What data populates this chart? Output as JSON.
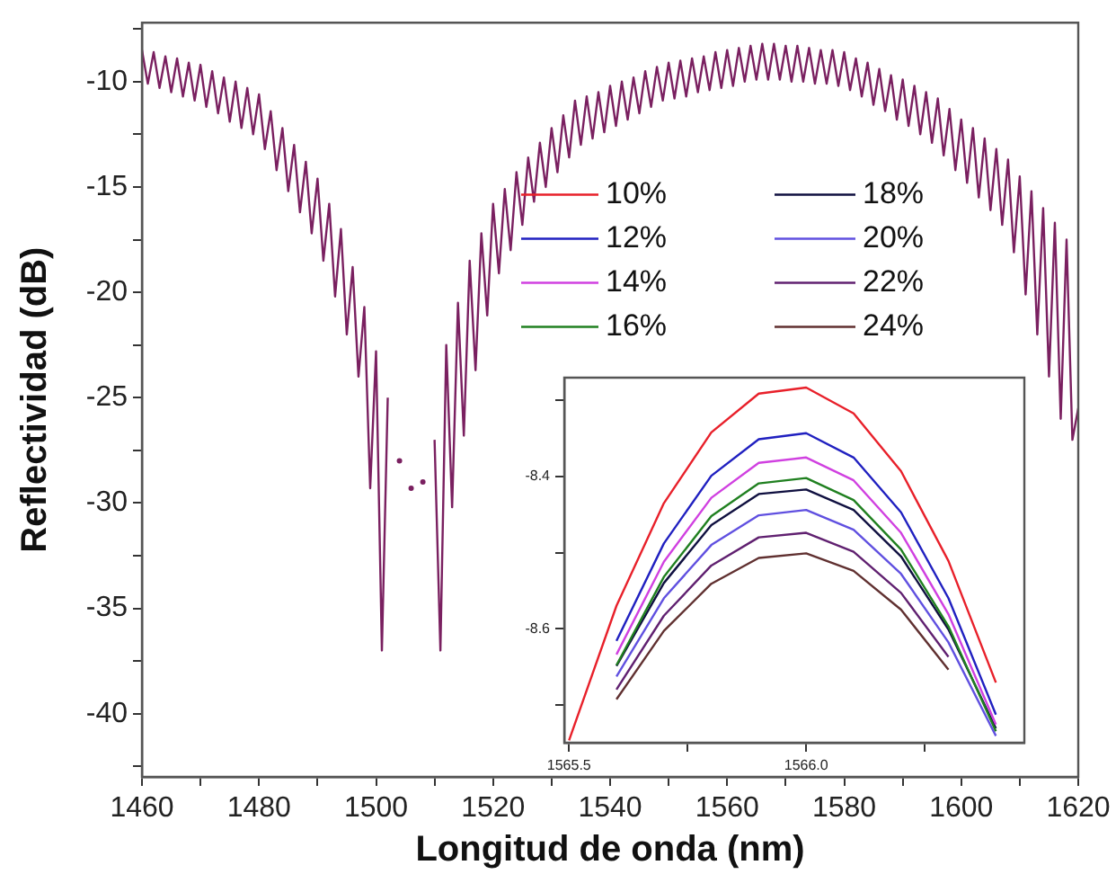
{
  "chart_data": [
    {
      "type": "line",
      "xlabel": "Longitud de onda (nm)",
      "ylabel": "Reflectividad (dB)",
      "marker": "none",
      "grid": false,
      "xlim": [
        1460,
        1620
      ],
      "ylim": [
        -43,
        -7.2
      ],
      "xticks": [
        1460,
        {
          "value": 1470,
          "label": null
        },
        1480,
        {
          "value": 1490,
          "label": null
        },
        1500,
        {
          "value": 1510,
          "label": null
        },
        1520,
        {
          "value": 1530,
          "label": null
        },
        1540,
        {
          "value": 1550,
          "label": null
        },
        1560,
        {
          "value": 1570,
          "label": null
        },
        1580,
        {
          "value": 1590,
          "label": null
        },
        1600,
        {
          "value": 1610,
          "label": null
        },
        1620
      ],
      "yticks": [
        {
          "value": -7.5,
          "label": null
        },
        -10,
        {
          "value": -12.5,
          "label": null
        },
        -15,
        {
          "value": -17.5,
          "label": null
        },
        -20,
        {
          "value": -22.5,
          "label": null
        },
        -25,
        {
          "value": -27.5,
          "label": null
        },
        -30,
        {
          "value": -32.5,
          "label": null
        },
        -35,
        {
          "value": -37.5,
          "label": null
        },
        -40,
        {
          "value": -42.5,
          "label": null
        }
      ],
      "x": [
        1460,
        1461,
        1462,
        1463,
        1464,
        1465,
        1466,
        1467,
        1468,
        1469,
        1470,
        1471,
        1472,
        1473,
        1474,
        1475,
        1476,
        1477,
        1478,
        1479,
        1480,
        1481,
        1482,
        1483,
        1484,
        1485,
        1486,
        1487,
        1488,
        1489,
        1490,
        1491,
        1492,
        1493,
        1494,
        1495,
        1496,
        1497,
        1498,
        1499,
        1500,
        1501,
        1502,
        1503,
        1504,
        1505,
        1506,
        1507,
        1508,
        1509,
        1510,
        1511,
        1512,
        1513,
        1514,
        1515,
        1516,
        1517,
        1518,
        1519,
        1520,
        1521,
        1522,
        1523,
        1524,
        1525,
        1526,
        1527,
        1528,
        1529,
        1530,
        1531,
        1532,
        1533,
        1534,
        1535,
        1536,
        1537,
        1538,
        1539,
        1540,
        1541,
        1542,
        1543,
        1544,
        1545,
        1546,
        1547,
        1548,
        1549,
        1550,
        1551,
        1552,
        1553,
        1554,
        1555,
        1556,
        1557,
        1558,
        1559,
        1560,
        1561,
        1562,
        1563,
        1564,
        1565,
        1566,
        1567,
        1568,
        1569,
        1570,
        1571,
        1572,
        1573,
        1574,
        1575,
        1576,
        1577,
        1578,
        1579,
        1580,
        1581,
        1582,
        1583,
        1584,
        1585,
        1586,
        1587,
        1588,
        1589,
        1590,
        1591,
        1592,
        1593,
        1594,
        1595,
        1596,
        1597,
        1598,
        1599,
        1600,
        1601,
        1602,
        1603,
        1604,
        1605,
        1606,
        1607,
        1608,
        1609,
        1610,
        1611,
        1612,
        1613,
        1614,
        1615,
        1616,
        1617,
        1618,
        1619,
        1620
      ],
      "series": [
        {
          "color": "#7a2060",
          "values": [
            -8.5,
            -10.1,
            -8.6,
            -10.3,
            -8.8,
            -10.5,
            -8.9,
            -10.7,
            -9.1,
            -10.9,
            -9.2,
            -11.2,
            -9.5,
            -11.5,
            -9.8,
            -11.9,
            -10.0,
            -12.2,
            -10.3,
            -12.5,
            -10.6,
            -13.2,
            -11.4,
            -14.2,
            -12.2,
            -15.2,
            -13.0,
            -16.2,
            -13.8,
            -17.2,
            -14.6,
            -18.5,
            -15.8,
            -20.2,
            -17.0,
            -22.0,
            -18.8,
            -24.0,
            -20.7,
            -29.3,
            -22.8,
            -37.0,
            -25.0,
            null,
            -28.0,
            null,
            -29.3,
            null,
            -29.0,
            null,
            -27.0,
            -37.0,
            -22.5,
            -30.2,
            -20.5,
            -26.8,
            -18.5,
            -23.7,
            -17.2,
            -21.1,
            -15.8,
            -19.1,
            -15.1,
            -18.0,
            -14.3,
            -16.8,
            -13.6,
            -15.7,
            -12.9,
            -15.0,
            -12.2,
            -14.3,
            -11.6,
            -13.6,
            -10.9,
            -13.0,
            -10.7,
            -12.7,
            -10.5,
            -12.4,
            -10.2,
            -12.1,
            -10.0,
            -11.8,
            -9.8,
            -11.5,
            -9.5,
            -11.2,
            -9.3,
            -10.9,
            -9.1,
            -10.8,
            -9.0,
            -10.7,
            -8.9,
            -10.5,
            -8.8,
            -10.4,
            -8.6,
            -10.3,
            -8.5,
            -10.2,
            -8.4,
            -10.0,
            -8.3,
            -9.9,
            -8.2,
            -9.9,
            -8.2,
            -9.9,
            -8.3,
            -10.0,
            -8.3,
            -10.0,
            -8.4,
            -10.1,
            -8.5,
            -10.1,
            -8.5,
            -10.2,
            -8.6,
            -10.4,
            -8.9,
            -10.7,
            -9.1,
            -11.1,
            -9.4,
            -11.4,
            -9.7,
            -11.8,
            -9.9,
            -12.1,
            -10.2,
            -12.5,
            -10.5,
            -12.9,
            -10.8,
            -13.5,
            -11.3,
            -14.2,
            -11.8,
            -14.8,
            -12.2,
            -15.5,
            -12.7,
            -16.1,
            -13.2,
            -16.8,
            -13.7,
            -18.1,
            -14.5,
            -20.1,
            -15.2,
            -22.0,
            -16.0,
            -24.0,
            -16.7,
            -26.0,
            -17.5,
            -27.0,
            -25.5
          ]
        }
      ]
    },
    {
      "type": "line",
      "marker": "none",
      "grid": false,
      "legend": "top",
      "xlim": [
        1565.49,
        1566.46
      ],
      "ylim": [
        -8.75,
        -8.27
      ],
      "xticks": [
        {
          "value": 1565.5,
          "label": "1565.5"
        },
        {
          "value": 1565.75,
          "label": null
        },
        {
          "value": 1566.0,
          "label": "1566.0"
        },
        {
          "value": 1566.25,
          "label": null
        }
      ],
      "yticks": [
        {
          "value": -8.3,
          "label": null
        },
        -8.4,
        {
          "value": -8.5,
          "label": null
        },
        -8.6,
        {
          "value": -8.7,
          "label": null
        }
      ],
      "x": [
        1565.5,
        1565.6,
        1565.7,
        1565.8,
        1565.9,
        1566.0,
        1566.1,
        1566.2,
        1566.3,
        1566.4
      ],
      "series": [
        {
          "name": "10%",
          "color": "#e8202a",
          "values": [
            -8.747,
            -8.57,
            -8.435,
            -8.342,
            -8.291,
            -8.283,
            -8.317,
            -8.393,
            -8.511,
            -8.671
          ]
        },
        {
          "name": "12%",
          "color": "#2020c0",
          "values": [
            null,
            -8.616,
            -8.488,
            -8.399,
            -8.351,
            -8.343,
            -8.375,
            -8.447,
            -8.56,
            -8.713
          ]
        },
        {
          "name": "14%",
          "color": "#d040e0",
          "values": [
            null,
            -8.634,
            -8.512,
            -8.428,
            -8.382,
            -8.375,
            -8.405,
            -8.474,
            -8.581,
            -8.726
          ]
        },
        {
          "name": "16%",
          "color": "#208020",
          "values": [
            null,
            -8.648,
            -8.532,
            -8.452,
            -8.409,
            -8.402,
            -8.431,
            -8.496,
            -8.597,
            -8.735
          ]
        },
        {
          "name": "18%",
          "color": "#101040",
          "values": [
            null,
            -8.649,
            -8.54,
            -8.464,
            -8.423,
            -8.417,
            -8.444,
            -8.505,
            -8.601,
            -8.731
          ]
        },
        {
          "name": "20%",
          "color": "#6050e0",
          "values": [
            null,
            -8.663,
            -8.56,
            -8.49,
            -8.451,
            -8.444,
            -8.47,
            -8.528,
            -8.618,
            -8.741
          ]
        },
        {
          "name": "22%",
          "color": "#602070",
          "values": [
            null,
            -8.68,
            -8.583,
            -8.517,
            -8.48,
            -8.474,
            -8.499,
            -8.553,
            -8.637,
            null
          ]
        },
        {
          "name": "24%",
          "color": "#603030",
          "values": [
            null,
            -8.693,
            -8.603,
            -8.541,
            -8.507,
            -8.501,
            -8.524,
            -8.575,
            -8.654,
            null
          ]
        }
      ]
    }
  ]
}
